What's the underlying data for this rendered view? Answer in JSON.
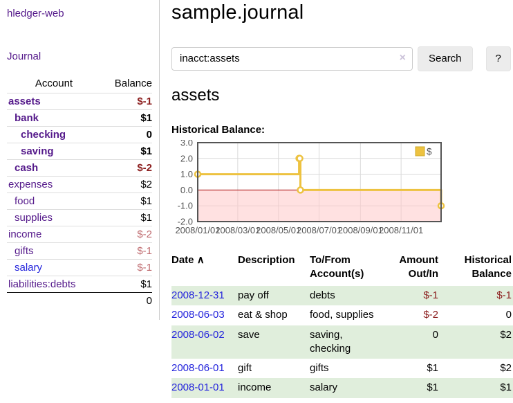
{
  "sidebar": {
    "app_title": "hledger-web",
    "journal_label": "Journal",
    "accounts": {
      "account_header": "Account",
      "balance_header": "Balance",
      "rows": [
        {
          "name": "assets",
          "balance": "$-1",
          "indent": 0,
          "bold": true,
          "neg": "strong"
        },
        {
          "name": "bank",
          "balance": "$1",
          "indent": 1,
          "bold": true,
          "neg": ""
        },
        {
          "name": "checking",
          "balance": "0",
          "indent": 2,
          "bold": true,
          "neg": ""
        },
        {
          "name": "saving",
          "balance": "$1",
          "indent": 2,
          "bold": true,
          "neg": ""
        },
        {
          "name": "cash",
          "balance": "$-2",
          "indent": 1,
          "bold": true,
          "neg": "strong"
        },
        {
          "name": "expenses",
          "balance": "$2",
          "indent": 0,
          "bold": false,
          "neg": ""
        },
        {
          "name": "food",
          "balance": "$1",
          "indent": 1,
          "bold": false,
          "neg": ""
        },
        {
          "name": "supplies",
          "balance": "$1",
          "indent": 1,
          "bold": false,
          "neg": ""
        },
        {
          "name": "income",
          "balance": "$-2",
          "indent": 0,
          "bold": false,
          "neg": "muted"
        },
        {
          "name": "gifts",
          "balance": "$-1",
          "indent": 1,
          "bold": false,
          "neg": "muted"
        },
        {
          "name": "salary",
          "balance": "$-1",
          "indent": 1,
          "bold": false,
          "neg": "muted",
          "blue": true
        },
        {
          "name": "liabilities:debts",
          "balance": "$1",
          "indent": 0,
          "bold": false,
          "neg": ""
        }
      ],
      "total": "0"
    }
  },
  "main": {
    "title": "sample.journal",
    "search": {
      "value": "inacct:assets",
      "clear_icon": "×",
      "button_label": "Search",
      "help_label": "?"
    },
    "account_heading": "assets",
    "chart_label": "Historical Balance:"
  },
  "chart_data": {
    "type": "line",
    "step": true,
    "title": "Historical Balance:",
    "series": [
      {
        "name": "$",
        "color": "#edc240",
        "points": [
          {
            "date": "2008-01-01",
            "day": 0,
            "value": 1
          },
          {
            "date": "2008-06-01",
            "day": 152,
            "value": 2
          },
          {
            "date": "2008-06-02",
            "day": 153,
            "value": 2
          },
          {
            "date": "2008-06-03",
            "day": 154,
            "value": 0
          },
          {
            "date": "2008-12-31",
            "day": 365,
            "value": -1
          }
        ]
      }
    ],
    "xlim_days": [
      0,
      365
    ],
    "ylim": [
      -2,
      3
    ],
    "x_ticks": [
      {
        "day": 0,
        "label": "2008/01/01"
      },
      {
        "day": 60,
        "label": "2008/03/01"
      },
      {
        "day": 121,
        "label": "2008/05/01"
      },
      {
        "day": 182,
        "label": "2008/07/01"
      },
      {
        "day": 244,
        "label": "2008/09/01"
      },
      {
        "day": 305,
        "label": "2008/11/01"
      }
    ],
    "y_ticks": [
      3.0,
      2.0,
      1.0,
      0.0,
      -1.0,
      -2.0
    ],
    "legend": {
      "label": "$",
      "position": "top-right"
    },
    "grid": true,
    "colors": {
      "line": "#edc240",
      "marker_fill": "#ffffff",
      "negative_region": "#ffc9c9",
      "zero_line": "#a40000",
      "gridline": "#d9d9d9",
      "border": "#545454",
      "tick_text": "#545454"
    }
  },
  "register": {
    "headers": {
      "date": "Date",
      "sort_icon": "∧",
      "description": "Description",
      "accounts": "To/From Account(s)",
      "amount": "Amount Out/In",
      "balance": "Historical Balance"
    },
    "rows": [
      {
        "date": "2008-12-31",
        "description": "pay off",
        "accounts": "debts",
        "amount": "$-1",
        "amount_neg": true,
        "balance": "$-1",
        "balance_neg": true
      },
      {
        "date": "2008-06-03",
        "description": "eat & shop",
        "accounts": "food, supplies",
        "amount": "$-2",
        "amount_neg": true,
        "balance": "0",
        "balance_neg": false
      },
      {
        "date": "2008-06-02",
        "description": "save",
        "accounts": "saving, checking",
        "amount": "0",
        "amount_neg": false,
        "balance": "$2",
        "balance_neg": false
      },
      {
        "date": "2008-06-01",
        "description": "gift",
        "accounts": "gifts",
        "amount": "$1",
        "amount_neg": false,
        "balance": "$2",
        "balance_neg": false
      },
      {
        "date": "2008-01-01",
        "description": "income",
        "accounts": "salary",
        "amount": "$1",
        "amount_neg": false,
        "balance": "$1",
        "balance_neg": false
      }
    ]
  }
}
